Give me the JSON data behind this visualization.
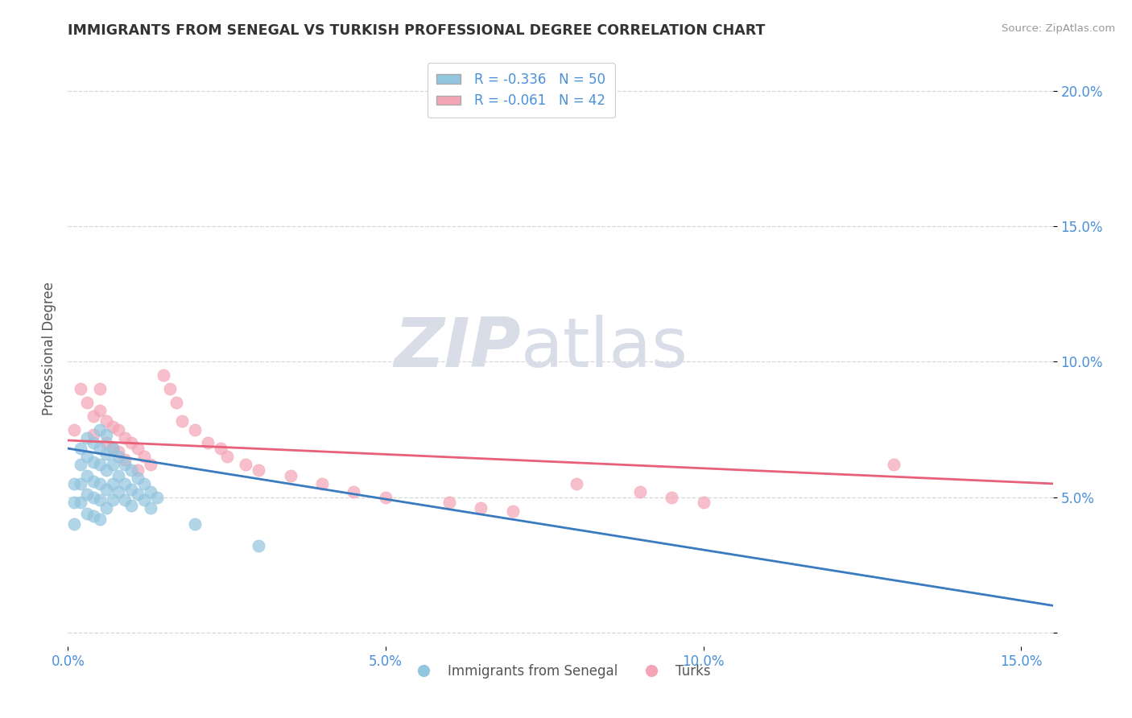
{
  "title": "IMMIGRANTS FROM SENEGAL VS TURKISH PROFESSIONAL DEGREE CORRELATION CHART",
  "source": "Source: ZipAtlas.com",
  "ylabel": "Professional Degree",
  "bottom_legend": [
    "Immigrants from Senegal",
    "Turks"
  ],
  "legend_line1": "R = -0.336   N = 50",
  "legend_line2": "R = -0.061   N = 42",
  "xlim": [
    0.0,
    0.155
  ],
  "ylim": [
    -0.005,
    0.215
  ],
  "xticks": [
    0.0,
    0.05,
    0.1,
    0.15
  ],
  "yticks": [
    0.0,
    0.05,
    0.1,
    0.15,
    0.2
  ],
  "xticklabels": [
    "0.0%",
    "5.0%",
    "10.0%",
    "15.0%"
  ],
  "yticklabels": [
    "",
    "5.0%",
    "10.0%",
    "15.0%",
    "20.0%"
  ],
  "blue_scatter_x": [
    0.001,
    0.001,
    0.001,
    0.002,
    0.002,
    0.002,
    0.002,
    0.003,
    0.003,
    0.003,
    0.003,
    0.003,
    0.004,
    0.004,
    0.004,
    0.004,
    0.004,
    0.005,
    0.005,
    0.005,
    0.005,
    0.005,
    0.005,
    0.006,
    0.006,
    0.006,
    0.006,
    0.006,
    0.007,
    0.007,
    0.007,
    0.007,
    0.008,
    0.008,
    0.008,
    0.009,
    0.009,
    0.009,
    0.01,
    0.01,
    0.01,
    0.011,
    0.011,
    0.012,
    0.012,
    0.013,
    0.013,
    0.014,
    0.02,
    0.03
  ],
  "blue_scatter_y": [
    0.055,
    0.048,
    0.04,
    0.068,
    0.062,
    0.055,
    0.048,
    0.072,
    0.065,
    0.058,
    0.051,
    0.044,
    0.07,
    0.063,
    0.056,
    0.05,
    0.043,
    0.075,
    0.068,
    0.062,
    0.055,
    0.049,
    0.042,
    0.073,
    0.066,
    0.06,
    0.053,
    0.046,
    0.068,
    0.062,
    0.055,
    0.049,
    0.065,
    0.058,
    0.052,
    0.062,
    0.055,
    0.049,
    0.06,
    0.053,
    0.047,
    0.057,
    0.051,
    0.055,
    0.049,
    0.052,
    0.046,
    0.05,
    0.04,
    0.032
  ],
  "pink_scatter_x": [
    0.001,
    0.002,
    0.003,
    0.004,
    0.004,
    0.005,
    0.005,
    0.006,
    0.006,
    0.007,
    0.007,
    0.008,
    0.008,
    0.009,
    0.009,
    0.01,
    0.011,
    0.011,
    0.012,
    0.013,
    0.015,
    0.016,
    0.017,
    0.018,
    0.02,
    0.022,
    0.024,
    0.025,
    0.028,
    0.03,
    0.035,
    0.04,
    0.045,
    0.05,
    0.06,
    0.065,
    0.07,
    0.08,
    0.09,
    0.095,
    0.1,
    0.13
  ],
  "pink_scatter_y": [
    0.075,
    0.09,
    0.085,
    0.08,
    0.073,
    0.09,
    0.082,
    0.078,
    0.07,
    0.076,
    0.068,
    0.075,
    0.067,
    0.072,
    0.064,
    0.07,
    0.068,
    0.06,
    0.065,
    0.062,
    0.095,
    0.09,
    0.085,
    0.078,
    0.075,
    0.07,
    0.068,
    0.065,
    0.062,
    0.06,
    0.058,
    0.055,
    0.052,
    0.05,
    0.048,
    0.046,
    0.045,
    0.055,
    0.052,
    0.05,
    0.048,
    0.062
  ],
  "blue_line_x": [
    0.0,
    0.155
  ],
  "blue_line_y": [
    0.068,
    0.01
  ],
  "pink_line_x": [
    0.0,
    0.155
  ],
  "pink_line_y": [
    0.071,
    0.055
  ],
  "blue_color": "#92c5de",
  "pink_color": "#f4a5b5",
  "blue_line_color": "#3a7abf",
  "pink_line_color": "#e8607a",
  "background_color": "#ffffff",
  "grid_color": "#d8d8d8",
  "title_color": "#333333",
  "tick_color": "#4a90d9",
  "ylabel_color": "#555555",
  "source_color": "#999999",
  "watermark_color": "#d8dde8"
}
